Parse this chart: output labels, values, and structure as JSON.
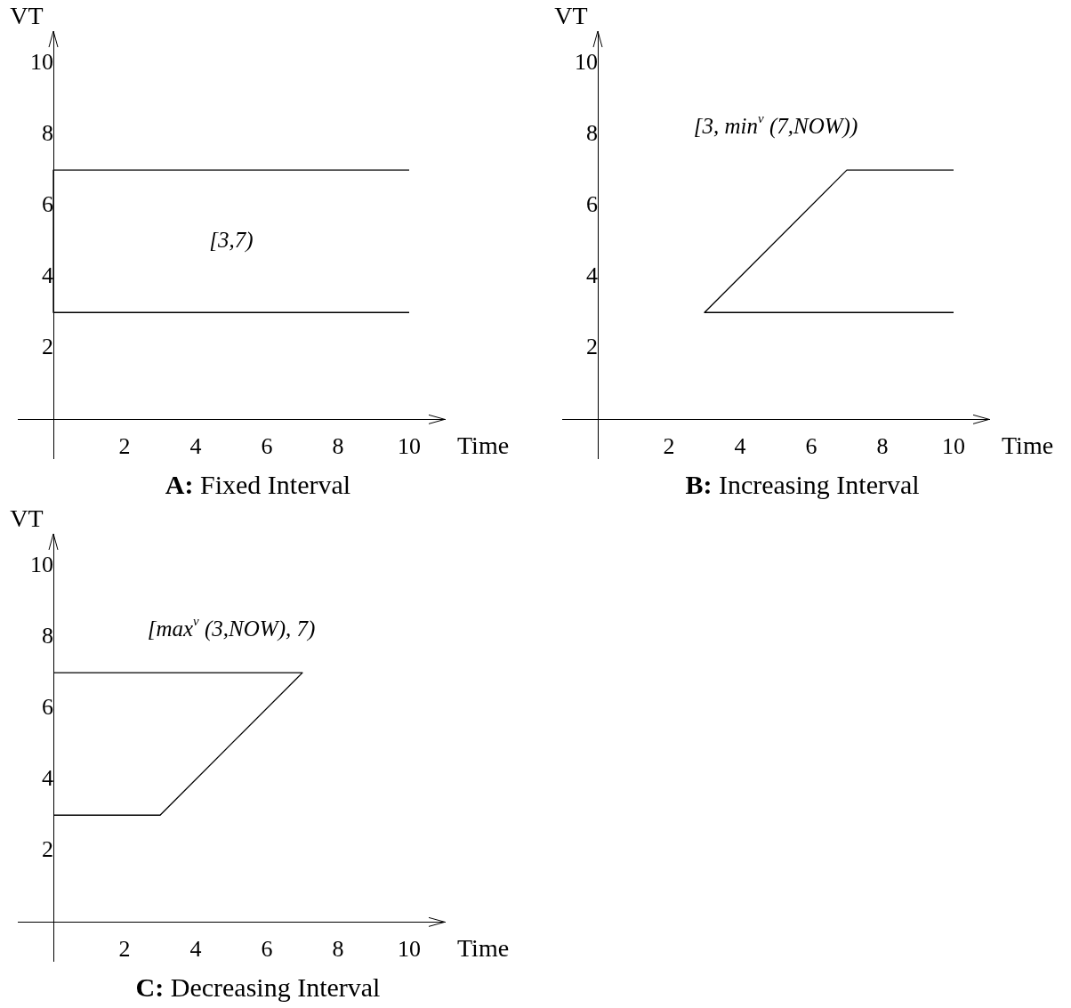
{
  "chart_data": [
    {
      "type": "line",
      "title": "A: Fixed Interval",
      "xlabel": "Time",
      "ylabel": "VT",
      "xlim": [
        -1,
        11
      ],
      "ylim": [
        -1.1,
        10.9
      ],
      "xticks": [
        2,
        4,
        6,
        8,
        10
      ],
      "yticks": [
        2,
        4,
        6,
        8,
        10
      ],
      "grid": false,
      "legend": false,
      "marker": "none",
      "line_style": "solid",
      "series": [
        {
          "color": "#000000",
          "x": [
            10,
            0,
            0,
            10
          ],
          "values": [
            7,
            7,
            3,
            3
          ]
        }
      ],
      "annotations": [
        "[3,7)"
      ]
    },
    {
      "type": "line",
      "title": "B: Increasing Interval",
      "xlabel": "Time",
      "ylabel": "VT",
      "xlim": [
        -1,
        11
      ],
      "ylim": [
        -1.1,
        10.9
      ],
      "xticks": [
        2,
        4,
        6,
        8,
        10
      ],
      "yticks": [
        2,
        4,
        6,
        8,
        10
      ],
      "grid": false,
      "legend": false,
      "marker": "none",
      "line_style": "solid",
      "series": [
        {
          "color": "#000000",
          "x": [
            10,
            7,
            3,
            10
          ],
          "values": [
            7,
            7,
            3,
            3
          ]
        }
      ],
      "annotations": [
        "[3, min$^{v}$ (7,NOW))"
      ]
    },
    {
      "type": "line",
      "title": "C: Decreasing Interval",
      "xlabel": "Time",
      "ylabel": "VT",
      "xlim": [
        -1,
        11
      ],
      "ylim": [
        -1.1,
        10.9
      ],
      "xticks": [
        2,
        4,
        6,
        8,
        10
      ],
      "yticks": [
        2,
        4,
        6,
        8,
        10
      ],
      "grid": false,
      "legend": false,
      "marker": "none",
      "line_style": "solid",
      "series": [
        {
          "color": "#000000",
          "x": [
            0,
            7,
            3,
            0
          ],
          "values": [
            7,
            7,
            3,
            3
          ]
        }
      ],
      "annotations": [
        "[max$^{v}$ (3,NOW), 7)"
      ]
    }
  ]
}
